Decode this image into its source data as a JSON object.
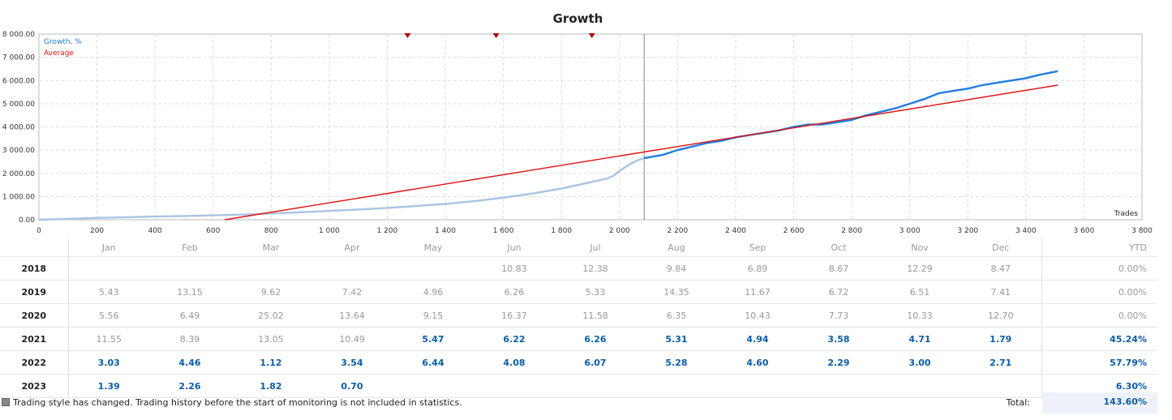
{
  "chart_data": {
    "type": "line",
    "title": "Growth",
    "xlabel": "Trades",
    "ylabel": "",
    "xlim": [
      0,
      3800
    ],
    "ylim": [
      0,
      8000
    ],
    "x_ticks": [
      0,
      200,
      400,
      600,
      800,
      1000,
      1200,
      1400,
      1600,
      1800,
      2000,
      2200,
      2400,
      2600,
      2800,
      3000,
      3200,
      3400,
      3600,
      3800
    ],
    "x_tick_labels": [
      "0",
      "200",
      "400",
      "600",
      "800",
      "1 000",
      "1 200",
      "1 400",
      "1 600",
      "1 800",
      "2 000",
      "2 200",
      "2 400",
      "2 600",
      "2 800",
      "3 000",
      "3 200",
      "3 400",
      "3 600",
      "3 800"
    ],
    "y_ticks": [
      0,
      1000,
      2000,
      3000,
      4000,
      5000,
      6000,
      7000,
      8000
    ],
    "y_tick_labels": [
      "0.00",
      "1 000.00",
      "2 000.00",
      "3 000.00",
      "4 000.00",
      "5 000.00",
      "6 000.00",
      "7 000.00",
      "8 000.00"
    ],
    "monitoring_start_x": 2085,
    "markers_x": [
      1270,
      1575,
      1905
    ],
    "legend": [
      "Growth, %",
      "Average"
    ],
    "series": [
      {
        "name": "Growth, %",
        "segment": "before monitoring",
        "color": "#a9c4e4",
        "x": [
          0,
          100,
          200,
          300,
          400,
          500,
          600,
          700,
          800,
          900,
          1000,
          1100,
          1200,
          1300,
          1400,
          1500,
          1600,
          1700,
          1800,
          1880,
          1960,
          1980,
          2000,
          2030,
          2060,
          2085
        ],
        "y": [
          0,
          40,
          80,
          110,
          140,
          160,
          190,
          220,
          270,
          320,
          380,
          440,
          510,
          590,
          680,
          800,
          950,
          1130,
          1340,
          1560,
          1780,
          1900,
          2100,
          2350,
          2550,
          2650
        ]
      },
      {
        "name": "Growth, %",
        "segment": "monitoring",
        "color": "#1f7de0",
        "x": [
          2085,
          2150,
          2200,
          2250,
          2300,
          2350,
          2400,
          2450,
          2500,
          2550,
          2600,
          2650,
          2700,
          2750,
          2800,
          2850,
          2900,
          2950,
          3000,
          3050,
          3100,
          3150,
          3200,
          3250,
          3300,
          3350,
          3400,
          3450,
          3510
        ],
        "y": [
          2650,
          2800,
          3000,
          3150,
          3300,
          3400,
          3550,
          3650,
          3750,
          3850,
          4000,
          4100,
          4100,
          4200,
          4300,
          4500,
          4650,
          4800,
          5000,
          5200,
          5450,
          5550,
          5650,
          5800,
          5900,
          6000,
          6100,
          6250,
          6400
        ]
      },
      {
        "name": "Average",
        "color": "#e01010",
        "x": [
          640,
          3510
        ],
        "y": [
          0,
          5800
        ]
      }
    ]
  },
  "table": {
    "months": [
      "Jan",
      "Feb",
      "Mar",
      "Apr",
      "May",
      "Jun",
      "Jul",
      "Aug",
      "Sep",
      "Oct",
      "Nov",
      "Dec"
    ],
    "ytd_label": "YTD",
    "rows": [
      {
        "year": "2018",
        "values": [
          "",
          "",
          "",
          "",
          "",
          "10.83",
          "12.38",
          "9.84",
          "6.89",
          "8.67",
          "12.29",
          "8.47"
        ],
        "monitored": [
          false,
          false,
          false,
          false,
          false,
          false,
          false,
          false,
          false,
          false,
          false,
          false
        ],
        "ytd": "0.00%",
        "ytd_monitored": false
      },
      {
        "year": "2019",
        "values": [
          "5.43",
          "13.15",
          "9.62",
          "7.42",
          "4.96",
          "6.26",
          "5.33",
          "14.35",
          "11.67",
          "6.72",
          "6.51",
          "7.41"
        ],
        "monitored": [
          false,
          false,
          false,
          false,
          false,
          false,
          false,
          false,
          false,
          false,
          false,
          false
        ],
        "ytd": "0.00%",
        "ytd_monitored": false
      },
      {
        "year": "2020",
        "values": [
          "5.56",
          "6.49",
          "25.02",
          "13.64",
          "9.15",
          "16.37",
          "11.58",
          "6.35",
          "10.43",
          "7.73",
          "10.33",
          "12.70"
        ],
        "monitored": [
          false,
          false,
          false,
          false,
          false,
          false,
          false,
          false,
          false,
          false,
          false,
          false
        ],
        "ytd": "0.00%",
        "ytd_monitored": false
      },
      {
        "year": "2021",
        "values": [
          "11.55",
          "8.39",
          "13.05",
          "10.49",
          "5.47",
          "6.22",
          "6.26",
          "5.31",
          "4.94",
          "3.58",
          "4.71",
          "1.79"
        ],
        "monitored": [
          false,
          false,
          false,
          false,
          true,
          true,
          true,
          true,
          true,
          true,
          true,
          true
        ],
        "ytd": "45.24%",
        "ytd_monitored": true
      },
      {
        "year": "2022",
        "values": [
          "3.03",
          "4.46",
          "1.12",
          "3.54",
          "6.44",
          "4.08",
          "6.07",
          "5.28",
          "4.60",
          "2.29",
          "3.00",
          "2.71"
        ],
        "monitored": [
          true,
          true,
          true,
          true,
          true,
          true,
          true,
          true,
          true,
          true,
          true,
          true
        ],
        "ytd": "57.79%",
        "ytd_monitored": true
      },
      {
        "year": "2023",
        "values": [
          "1.39",
          "2.26",
          "1.82",
          "0.70",
          "",
          "",
          "",
          "",
          "",
          "",
          "",
          ""
        ],
        "monitored": [
          true,
          true,
          true,
          true,
          false,
          false,
          false,
          false,
          false,
          false,
          false,
          false
        ],
        "ytd": "6.30%",
        "ytd_monitored": true
      }
    ]
  },
  "footer": {
    "note": "Trading style has changed. Trading history before the start of monitoring is not included in statistics.",
    "total_label": "Total:",
    "total_value": "143.60%"
  }
}
